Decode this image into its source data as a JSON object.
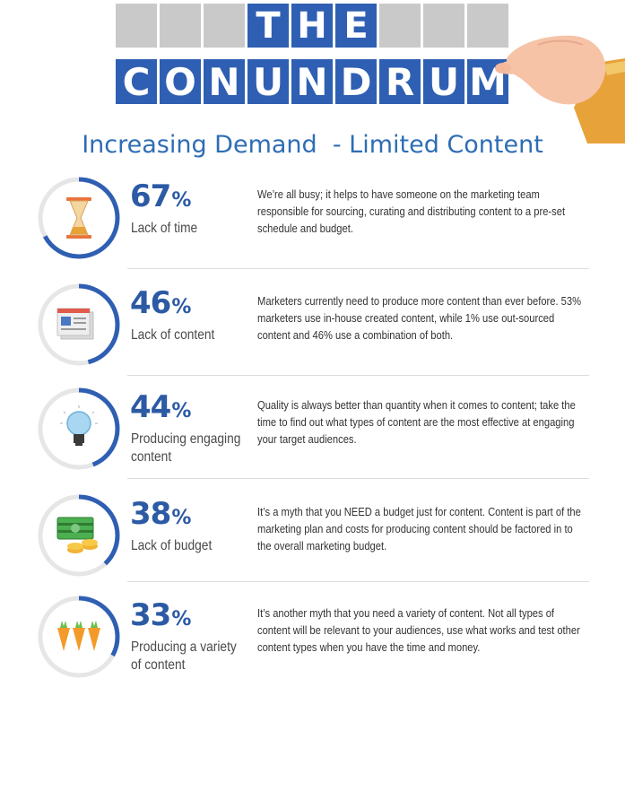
{
  "header": {
    "row1": [
      "",
      "",
      "",
      "T",
      "H",
      "E",
      "",
      "",
      "",
      ""
    ],
    "row2": [
      "C",
      "O",
      "N",
      "U",
      "N",
      "D",
      "R",
      "U",
      "M"
    ],
    "title": "Increasing Demand  - Limited Content"
  },
  "stats": [
    {
      "value": "67",
      "symbol": "%",
      "label": "Lack of time",
      "description": "We’re all busy; it helps to have someone on the marketing team responsible for sourcing, curating and distributing content to a pre-set schedule and budget.",
      "icon": "hourglass-icon"
    },
    {
      "value": "46",
      "symbol": "%",
      "label": "Lack of content",
      "description": "Marketers currently need to produce more content than ever before. 53% marketers use in-house created content, while 1% use out-sourced content and 46% use a combination of both.",
      "icon": "document-icon"
    },
    {
      "value": "44",
      "symbol": "%",
      "label": "Producing engaging content",
      "description": "Quality is always better than quantity when it comes to content; take the time to find out what types of content are the most effective at engaging your target audiences.",
      "icon": "lightbulb-icon"
    },
    {
      "value": "38",
      "symbol": "%",
      "label": "Lack of budget",
      "description": "It’s a myth that you NEED a budget just for content. Content is part of the marketing plan and costs for producing content should be factored in to the overall marketing budget.",
      "icon": "money-icon"
    },
    {
      "value": "33",
      "symbol": "%",
      "label": "Producing a variety of content",
      "description": "It’s another myth that you need a variety of content. Not all types of content will be relevant to your audiences, use what works and test other content types when you have the time and money.",
      "icon": "carrots-icon"
    }
  ],
  "colors": {
    "accent_blue": "#2f5fb3",
    "title_blue": "#2e6db5",
    "ring_track": "#e6e6e6"
  }
}
